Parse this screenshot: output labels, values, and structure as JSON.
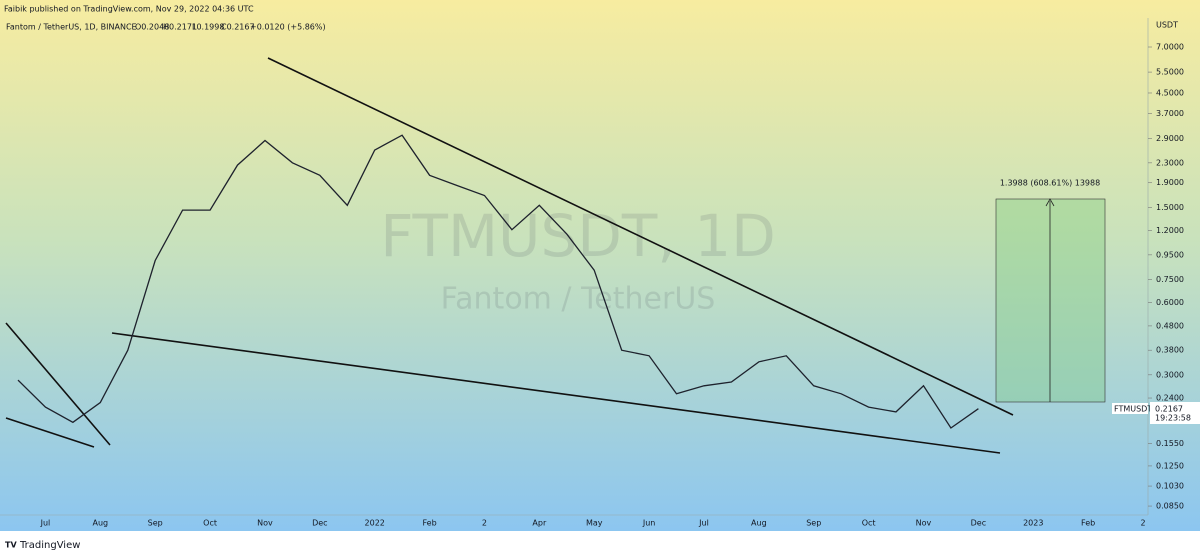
{
  "chart_data": {
    "type": "line",
    "header": "Faibik published on TradingView.com, Nov 29, 2022 04:36 UTC",
    "symbol_info": "Fantom / TetherUS, 1D, BINANCE",
    "ohlc": [
      "O0.2048",
      "H0.2171",
      "L0.1998",
      "C0.2167"
    ],
    "change": "+0.0120 (+5.86%)",
    "watermark": [
      "FTMUSDT, 1D",
      "Fantom / TetherUS"
    ],
    "measure_label": "1.3988 (608.61%) 13988",
    "y_axis_unit": "USDT",
    "symbol_tag": "FTMUSDT",
    "last_price_label": "0.2167",
    "countdown": "19:23:58",
    "footer": "TradingView",
    "log_y": true,
    "color": "#1e222d",
    "categories": [
      null,
      "Jul",
      null,
      "Aug",
      null,
      "Sep",
      null,
      "Oct",
      null,
      "Nov",
      null,
      "Dec",
      null,
      "2022",
      null,
      "Feb",
      null,
      "2",
      null,
      "Apr",
      null,
      "May",
      null,
      "Jun",
      null,
      "Jul",
      null,
      "Aug",
      null,
      "Sep",
      null,
      "Oct",
      null,
      "Nov",
      null,
      "Dec",
      null,
      "2023",
      null,
      "Feb",
      null,
      "2"
    ],
    "values": [
      0.285,
      0.22,
      0.19,
      0.23,
      0.38,
      0.9,
      1.46,
      1.46,
      2.25,
      2.85,
      2.3,
      2.04,
      1.53,
      2.6,
      3.0,
      2.04,
      1.85,
      1.68,
      1.21,
      1.53,
      1.16,
      0.82,
      0.38,
      0.36,
      0.25,
      0.27,
      0.28,
      0.34,
      0.36,
      0.27,
      0.25,
      0.22,
      0.21,
      0.27,
      0.18,
      0.2167,
      null,
      null,
      null,
      null,
      null,
      null
    ],
    "ylim": [
      0.078,
      9.25
    ],
    "yticks": [
      {
        "value": 7,
        "label": "7.0000"
      },
      {
        "value": 5.5,
        "label": "5.5000"
      },
      {
        "value": 4.5,
        "label": "4.5000"
      },
      {
        "value": 3.7,
        "label": "3.7000"
      },
      {
        "value": 2.9,
        "label": "2.9000"
      },
      {
        "value": 2.3,
        "label": "2.3000"
      },
      {
        "value": 1.9,
        "label": "1.9000"
      },
      {
        "value": 1.5,
        "label": "1.5000"
      },
      {
        "value": 1.2,
        "label": "1.2000"
      },
      {
        "value": 0.95,
        "label": "0.9500"
      },
      {
        "value": 0.75,
        "label": "0.7500"
      },
      {
        "value": 0.6,
        "label": "0.6000"
      },
      {
        "value": 0.48,
        "label": "0.4800"
      },
      {
        "value": 0.38,
        "label": "0.3800"
      },
      {
        "value": 0.3,
        "label": "0.3000"
      },
      {
        "value": 0.24,
        "label": "0.2400"
      },
      {
        "value": 0.155,
        "label": "0.1550"
      },
      {
        "value": 0.125,
        "label": "0.1250"
      },
      {
        "value": 0.103,
        "label": "0.1030"
      },
      {
        "value": 0.085,
        "label": "0.0850"
      }
    ]
  }
}
